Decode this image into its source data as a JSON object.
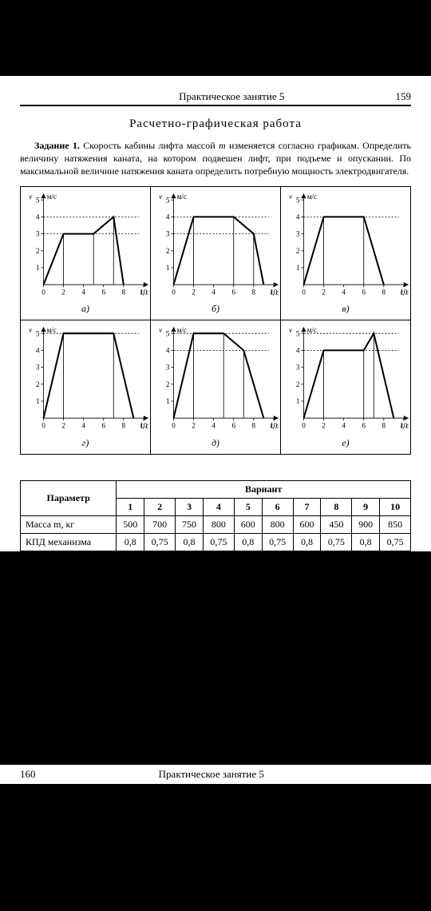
{
  "header": {
    "lesson": "Практическое занятие 5",
    "page_right": "159"
  },
  "title": "Расчетно-графическая работа",
  "task": {
    "label": "Задание 1.",
    "text_before_m": " Скорость кабины лифта массой ",
    "m": "m",
    "text_after_m": " изменяется согласно графикам. Определить величину натяжения каната, на котором подвешен лифт, при подъеме и опускании. По максимальной величине натяжения каната определить потребную мощность электродвигателя."
  },
  "chart_style": {
    "axis_color": "#000000",
    "line_width": 2,
    "x_min": 0,
    "x_max": 10,
    "y_min": 0,
    "y_max": 5,
    "xticks": [
      0,
      2,
      4,
      6,
      8,
      10
    ],
    "yticks": [
      1,
      2,
      3,
      4,
      5
    ],
    "y_label": "v",
    "y_unit": "м/с",
    "x_label": "t, с",
    "background": "#ffffff"
  },
  "charts": [
    {
      "caption": "а)",
      "line": [
        [
          0,
          0
        ],
        [
          2,
          3
        ],
        [
          5,
          3
        ],
        [
          7,
          4
        ],
        [
          8,
          0
        ]
      ],
      "dash_y": [
        3,
        4
      ],
      "drops": [
        2,
        5,
        7,
        8
      ]
    },
    {
      "caption": "б)",
      "line": [
        [
          0,
          0
        ],
        [
          2,
          4
        ],
        [
          6,
          4
        ],
        [
          8,
          3
        ],
        [
          9,
          0
        ]
      ],
      "dash_y": [
        3,
        4
      ],
      "drops": [
        2,
        6,
        8,
        9
      ]
    },
    {
      "caption": "в)",
      "line": [
        [
          0,
          0
        ],
        [
          2,
          4
        ],
        [
          6,
          4
        ],
        [
          8,
          0
        ]
      ],
      "dash_y": [
        4
      ],
      "drops": [
        2,
        6,
        8
      ]
    },
    {
      "caption": "г)",
      "line": [
        [
          0,
          0
        ],
        [
          2,
          5
        ],
        [
          7,
          5
        ],
        [
          9,
          0
        ]
      ],
      "dash_y": [
        5
      ],
      "drops": [
        2,
        7,
        9
      ]
    },
    {
      "caption": "д)",
      "line": [
        [
          0,
          0
        ],
        [
          2,
          5
        ],
        [
          5,
          5
        ],
        [
          7,
          4
        ],
        [
          9,
          0
        ]
      ],
      "dash_y": [
        4,
        5
      ],
      "drops": [
        2,
        5,
        7,
        9
      ]
    },
    {
      "caption": "е)",
      "line": [
        [
          0,
          0
        ],
        [
          2,
          4
        ],
        [
          6,
          4
        ],
        [
          7,
          5
        ],
        [
          9,
          0
        ]
      ],
      "dash_y": [
        4,
        5
      ],
      "drops": [
        2,
        6,
        7,
        9
      ]
    }
  ],
  "table": {
    "param_header": "Параметр",
    "variant_header": "Вариант",
    "variants": [
      "1",
      "2",
      "3",
      "4",
      "5",
      "6",
      "7",
      "8",
      "9",
      "10"
    ],
    "rows": [
      {
        "label": "Масса m, кг",
        "vals": [
          "500",
          "700",
          "750",
          "800",
          "600",
          "800",
          "600",
          "450",
          "900",
          "850"
        ]
      },
      {
        "label": "КПД механизма",
        "vals": [
          "0,8",
          "0,75",
          "0,8",
          "0,75",
          "0,8",
          "0,75",
          "0,8",
          "0,75",
          "0,8",
          "0,75"
        ]
      }
    ]
  },
  "footer": {
    "page_left": "160",
    "lesson": "Практическое занятие 5"
  }
}
